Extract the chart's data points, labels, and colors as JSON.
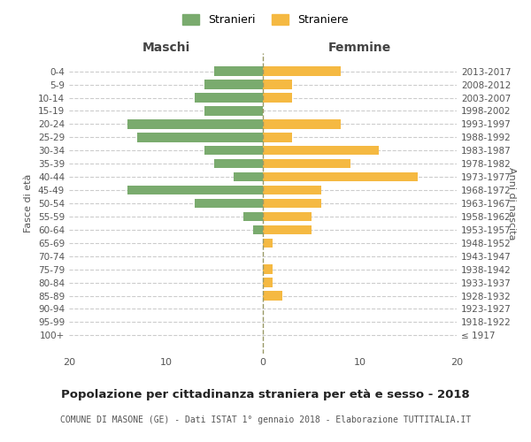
{
  "age_groups": [
    "100+",
    "95-99",
    "90-94",
    "85-89",
    "80-84",
    "75-79",
    "70-74",
    "65-69",
    "60-64",
    "55-59",
    "50-54",
    "45-49",
    "40-44",
    "35-39",
    "30-34",
    "25-29",
    "20-24",
    "15-19",
    "10-14",
    "5-9",
    "0-4"
  ],
  "birth_years": [
    "≤ 1917",
    "1918-1922",
    "1923-1927",
    "1928-1932",
    "1933-1937",
    "1938-1942",
    "1943-1947",
    "1948-1952",
    "1953-1957",
    "1958-1962",
    "1963-1967",
    "1968-1972",
    "1973-1977",
    "1978-1982",
    "1983-1987",
    "1988-1992",
    "1993-1997",
    "1998-2002",
    "2003-2007",
    "2008-2012",
    "2013-2017"
  ],
  "males": [
    0,
    0,
    0,
    0,
    0,
    0,
    0,
    0,
    1,
    2,
    7,
    14,
    3,
    5,
    6,
    13,
    14,
    6,
    7,
    6,
    5
  ],
  "females": [
    0,
    0,
    0,
    2,
    1,
    1,
    0,
    1,
    5,
    5,
    6,
    6,
    16,
    9,
    12,
    3,
    8,
    0,
    3,
    3,
    8
  ],
  "male_color": "#7aab6e",
  "female_color": "#f5b942",
  "center_line_color": "#999966",
  "grid_color": "#cccccc",
  "bg_color": "#ffffff",
  "title": "Popolazione per cittadinanza straniera per età e sesso - 2018",
  "subtitle": "COMUNE DI MASONE (GE) - Dati ISTAT 1° gennaio 2018 - Elaborazione TUTTITALIA.IT",
  "xlabel_left": "Maschi",
  "xlabel_right": "Femmine",
  "ylabel_left": "Fasce di età",
  "ylabel_right": "Anni di nascita",
  "legend_males": "Stranieri",
  "legend_females": "Straniere",
  "xlim": 20
}
